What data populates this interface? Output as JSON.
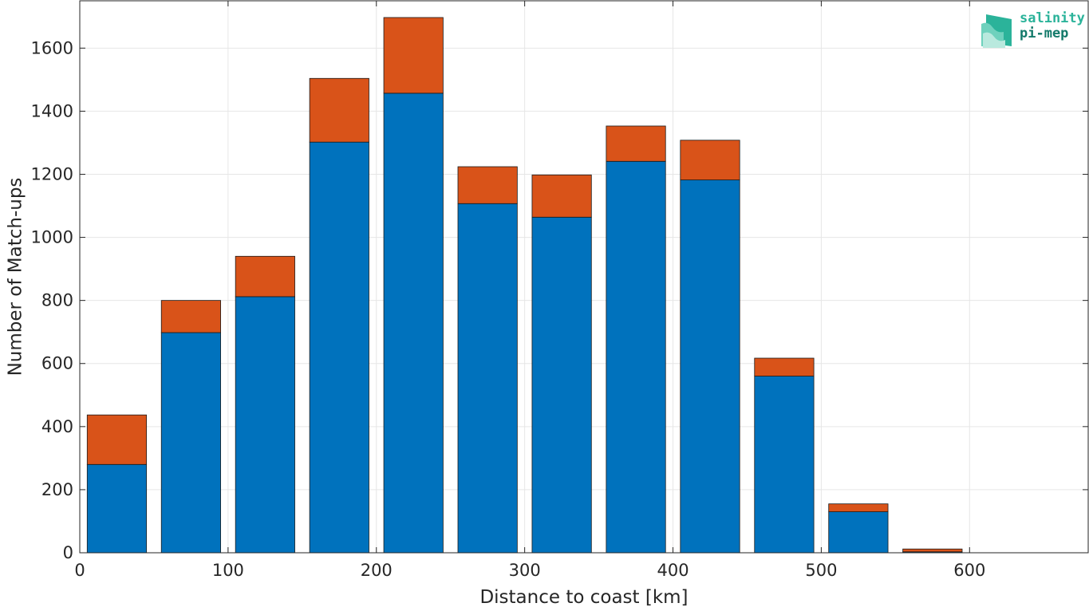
{
  "chart_data": {
    "type": "bar",
    "stacked": true,
    "title": "",
    "xlabel": "Distance to coast [km]",
    "ylabel": "Number of Match-ups",
    "xlim": [
      0,
      680
    ],
    "ylim": [
      0,
      1750
    ],
    "xticks": [
      0,
      100,
      200,
      300,
      400,
      500,
      600
    ],
    "yticks": [
      0,
      200,
      400,
      600,
      800,
      1000,
      1200,
      1400,
      1600
    ],
    "bar_width": 40,
    "x": [
      25,
      75,
      125,
      175,
      225,
      275,
      325,
      375,
      425,
      475,
      525,
      575
    ],
    "series": [
      {
        "values": [
          280,
          698,
          812,
          1302,
          1457,
          1107,
          1064,
          1241,
          1182,
          560,
          130,
          3
        ],
        "color": "#0072bd"
      },
      {
        "values": [
          157,
          102,
          128,
          202,
          240,
          117,
          134,
          112,
          126,
          57,
          25,
          9
        ],
        "color": "#d95319"
      }
    ],
    "grid": true
  },
  "logo": {
    "line1": "salinity",
    "line2": "pi-mep"
  }
}
